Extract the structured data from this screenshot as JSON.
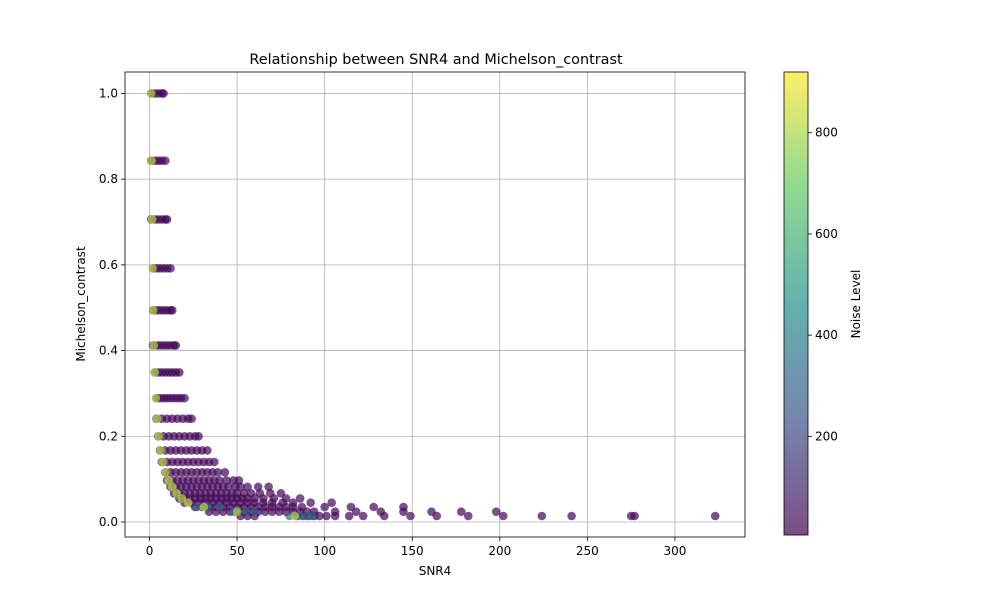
{
  "chart_data": {
    "type": "scatter",
    "title": "Relationship between SNR4 and Michelson_contrast",
    "xlabel": "SNR4",
    "ylabel": "Michelson_contrast",
    "xlim": [
      -14,
      340
    ],
    "ylim": [
      -0.035,
      1.05
    ],
    "xticks": [
      0,
      50,
      100,
      150,
      200,
      250,
      300
    ],
    "xtick_labels": [
      "0",
      "50",
      "100",
      "150",
      "200",
      "250",
      "300"
    ],
    "yticks": [
      0.0,
      0.2,
      0.4,
      0.6,
      0.8,
      1.0
    ],
    "ytick_labels": [
      "0.0",
      "0.2",
      "0.4",
      "0.6",
      "0.8",
      "1.0"
    ],
    "grid": true,
    "marker_alpha": 0.7,
    "colorbar": {
      "label": "Noise Level",
      "colormap": "viridis",
      "range": [
        5,
        920
      ],
      "ticks": [
        200,
        400,
        600,
        800
      ],
      "tick_labels": [
        "200",
        "400",
        "600",
        "800"
      ]
    },
    "contrast_levels": [
      1.0,
      0.843,
      0.706,
      0.592,
      0.494,
      0.412,
      0.349,
      0.289,
      0.241,
      0.2,
      0.167,
      0.14,
      0.116,
      0.097,
      0.082,
      0.067,
      0.055,
      0.045,
      0.035,
      0.024,
      0.014
    ],
    "points_low_noise_noise": 20,
    "low_noise_points": [
      [
        1,
        1.0
      ],
      [
        3,
        1.0
      ],
      [
        5,
        1.0
      ],
      [
        7,
        1.0
      ],
      [
        8,
        1.0
      ],
      [
        1,
        0.843
      ],
      [
        3,
        0.843
      ],
      [
        5,
        0.843
      ],
      [
        7,
        0.843
      ],
      [
        9,
        0.843
      ],
      [
        1,
        0.706
      ],
      [
        3,
        0.706
      ],
      [
        5,
        0.706
      ],
      [
        7,
        0.706
      ],
      [
        9,
        0.706
      ],
      [
        10,
        0.706
      ],
      [
        2,
        0.592
      ],
      [
        4,
        0.592
      ],
      [
        6,
        0.592
      ],
      [
        8,
        0.592
      ],
      [
        10,
        0.592
      ],
      [
        12,
        0.592
      ],
      [
        2,
        0.494
      ],
      [
        4,
        0.494
      ],
      [
        6,
        0.494
      ],
      [
        8,
        0.494
      ],
      [
        10,
        0.494
      ],
      [
        12,
        0.494
      ],
      [
        13,
        0.494
      ],
      [
        2,
        0.412
      ],
      [
        4,
        0.412
      ],
      [
        6,
        0.412
      ],
      [
        8,
        0.412
      ],
      [
        10,
        0.412
      ],
      [
        12,
        0.412
      ],
      [
        14,
        0.412
      ],
      [
        15,
        0.412
      ],
      [
        3,
        0.349
      ],
      [
        5,
        0.349
      ],
      [
        7,
        0.349
      ],
      [
        9,
        0.349
      ],
      [
        11,
        0.349
      ],
      [
        13,
        0.349
      ],
      [
        15,
        0.349
      ],
      [
        17,
        0.349
      ],
      [
        4,
        0.289
      ],
      [
        6,
        0.289
      ],
      [
        8,
        0.289
      ],
      [
        10,
        0.289
      ],
      [
        12,
        0.289
      ],
      [
        14,
        0.289
      ],
      [
        16,
        0.289
      ],
      [
        18,
        0.289
      ],
      [
        20,
        0.289
      ],
      [
        4,
        0.241
      ],
      [
        7,
        0.241
      ],
      [
        10,
        0.241
      ],
      [
        13,
        0.241
      ],
      [
        16,
        0.241
      ],
      [
        19,
        0.241
      ],
      [
        22,
        0.241
      ],
      [
        24,
        0.241
      ],
      [
        5,
        0.2
      ],
      [
        8,
        0.2
      ],
      [
        11,
        0.2
      ],
      [
        14,
        0.2
      ],
      [
        17,
        0.2
      ],
      [
        20,
        0.2
      ],
      [
        23,
        0.2
      ],
      [
        26,
        0.2
      ],
      [
        28,
        0.2
      ],
      [
        6,
        0.167
      ],
      [
        9,
        0.167
      ],
      [
        12,
        0.167
      ],
      [
        15,
        0.167
      ],
      [
        18,
        0.167
      ],
      [
        21,
        0.167
      ],
      [
        24,
        0.167
      ],
      [
        27,
        0.167
      ],
      [
        30,
        0.167
      ],
      [
        33,
        0.167
      ],
      [
        7,
        0.14
      ],
      [
        10,
        0.14
      ],
      [
        13,
        0.14
      ],
      [
        16,
        0.14
      ],
      [
        19,
        0.14
      ],
      [
        22,
        0.14
      ],
      [
        25,
        0.14
      ],
      [
        28,
        0.14
      ],
      [
        31,
        0.14
      ],
      [
        34,
        0.14
      ],
      [
        37,
        0.14
      ],
      [
        9,
        0.116
      ],
      [
        12,
        0.116
      ],
      [
        15,
        0.116
      ],
      [
        18,
        0.116
      ],
      [
        21,
        0.116
      ],
      [
        24,
        0.116
      ],
      [
        27,
        0.116
      ],
      [
        30,
        0.116
      ],
      [
        33,
        0.116
      ],
      [
        36,
        0.116
      ],
      [
        39,
        0.116
      ],
      [
        43,
        0.116
      ],
      [
        10,
        0.097
      ],
      [
        13,
        0.097
      ],
      [
        16,
        0.097
      ],
      [
        19,
        0.097
      ],
      [
        22,
        0.097
      ],
      [
        25,
        0.097
      ],
      [
        28,
        0.097
      ],
      [
        31,
        0.097
      ],
      [
        34,
        0.097
      ],
      [
        37,
        0.097
      ],
      [
        40,
        0.097
      ],
      [
        44,
        0.097
      ],
      [
        48,
        0.097
      ],
      [
        51,
        0.097
      ],
      [
        12,
        0.082
      ],
      [
        15,
        0.082
      ],
      [
        18,
        0.082
      ],
      [
        21,
        0.082
      ],
      [
        24,
        0.082
      ],
      [
        27,
        0.082
      ],
      [
        30,
        0.082
      ],
      [
        33,
        0.082
      ],
      [
        36,
        0.082
      ],
      [
        39,
        0.082
      ],
      [
        42,
        0.082
      ],
      [
        45,
        0.082
      ],
      [
        49,
        0.082
      ],
      [
        52,
        0.082
      ],
      [
        56,
        0.082
      ],
      [
        62,
        0.082
      ],
      [
        68,
        0.082
      ],
      [
        14,
        0.067
      ],
      [
        17,
        0.067
      ],
      [
        20,
        0.067
      ],
      [
        23,
        0.067
      ],
      [
        26,
        0.067
      ],
      [
        29,
        0.067
      ],
      [
        32,
        0.067
      ],
      [
        35,
        0.067
      ],
      [
        38,
        0.067
      ],
      [
        41,
        0.067
      ],
      [
        44,
        0.067
      ],
      [
        47,
        0.067
      ],
      [
        50,
        0.067
      ],
      [
        54,
        0.067
      ],
      [
        58,
        0.067
      ],
      [
        63,
        0.067
      ],
      [
        69,
        0.067
      ],
      [
        75,
        0.067
      ],
      [
        17,
        0.055
      ],
      [
        20,
        0.055
      ],
      [
        23,
        0.055
      ],
      [
        26,
        0.055
      ],
      [
        29,
        0.055
      ],
      [
        32,
        0.055
      ],
      [
        35,
        0.055
      ],
      [
        38,
        0.055
      ],
      [
        41,
        0.055
      ],
      [
        44,
        0.055
      ],
      [
        47,
        0.055
      ],
      [
        50,
        0.055
      ],
      [
        53,
        0.055
      ],
      [
        56,
        0.055
      ],
      [
        60,
        0.055
      ],
      [
        65,
        0.055
      ],
      [
        71,
        0.055
      ],
      [
        78,
        0.055
      ],
      [
        86,
        0.055
      ],
      [
        20,
        0.045
      ],
      [
        24,
        0.045
      ],
      [
        28,
        0.045
      ],
      [
        32,
        0.045
      ],
      [
        36,
        0.045
      ],
      [
        40,
        0.045
      ],
      [
        44,
        0.045
      ],
      [
        48,
        0.045
      ],
      [
        52,
        0.045
      ],
      [
        56,
        0.045
      ],
      [
        60,
        0.045
      ],
      [
        65,
        0.045
      ],
      [
        70,
        0.045
      ],
      [
        76,
        0.045
      ],
      [
        82,
        0.045
      ],
      [
        92,
        0.045
      ],
      [
        104,
        0.045
      ],
      [
        26,
        0.035
      ],
      [
        30,
        0.035
      ],
      [
        34,
        0.035
      ],
      [
        38,
        0.035
      ],
      [
        42,
        0.035
      ],
      [
        46,
        0.035
      ],
      [
        50,
        0.035
      ],
      [
        54,
        0.035
      ],
      [
        58,
        0.035
      ],
      [
        62,
        0.035
      ],
      [
        66,
        0.035
      ],
      [
        70,
        0.035
      ],
      [
        74,
        0.035
      ],
      [
        78,
        0.035
      ],
      [
        82,
        0.035
      ],
      [
        87,
        0.035
      ],
      [
        100,
        0.035
      ],
      [
        115,
        0.035
      ],
      [
        128,
        0.035
      ],
      [
        145,
        0.035
      ],
      [
        34,
        0.024
      ],
      [
        38,
        0.024
      ],
      [
        42,
        0.024
      ],
      [
        46,
        0.024
      ],
      [
        50,
        0.024
      ],
      [
        54,
        0.024
      ],
      [
        58,
        0.024
      ],
      [
        62,
        0.024
      ],
      [
        66,
        0.024
      ],
      [
        70,
        0.024
      ],
      [
        74,
        0.024
      ],
      [
        78,
        0.024
      ],
      [
        82,
        0.024
      ],
      [
        86,
        0.024
      ],
      [
        90,
        0.024
      ],
      [
        94,
        0.024
      ],
      [
        106,
        0.024
      ],
      [
        118,
        0.024
      ],
      [
        132,
        0.024
      ],
      [
        145,
        0.024
      ],
      [
        161,
        0.024
      ],
      [
        178,
        0.024
      ],
      [
        198,
        0.024
      ],
      [
        52,
        0.014
      ],
      [
        56,
        0.014
      ],
      [
        60,
        0.014
      ],
      [
        84,
        0.014
      ],
      [
        88,
        0.014
      ],
      [
        91,
        0.014
      ],
      [
        94,
        0.014
      ],
      [
        97,
        0.014
      ],
      [
        101,
        0.014
      ],
      [
        106,
        0.014
      ],
      [
        114,
        0.014
      ],
      [
        122,
        0.014
      ],
      [
        134,
        0.014
      ],
      [
        149,
        0.014
      ],
      [
        164,
        0.014
      ],
      [
        182,
        0.014
      ],
      [
        202,
        0.014
      ],
      [
        224,
        0.014
      ],
      [
        241,
        0.014
      ],
      [
        275,
        0.014
      ],
      [
        277,
        0.014
      ],
      [
        323,
        0.014
      ]
    ],
    "high_noise_noise": 820,
    "high_noise_points": [
      [
        1,
        1.0
      ],
      [
        1.2,
        0.843
      ],
      [
        1.5,
        0.706
      ],
      [
        1.8,
        0.592
      ],
      [
        2.1,
        0.494
      ],
      [
        2.5,
        0.412
      ],
      [
        3,
        0.349
      ],
      [
        3.6,
        0.289
      ],
      [
        4.3,
        0.241
      ],
      [
        5.2,
        0.2
      ],
      [
        6.3,
        0.167
      ],
      [
        7.5,
        0.14
      ],
      [
        9,
        0.116
      ],
      [
        10.8,
        0.097
      ],
      [
        12.9,
        0.082
      ],
      [
        15.5,
        0.067
      ],
      [
        18.5,
        0.055
      ],
      [
        22,
        0.045
      ],
      [
        31,
        0.035
      ],
      [
        50,
        0.024
      ],
      [
        83,
        0.014
      ]
    ],
    "mid_noise_noise": 300,
    "mid_noise_points": [
      [
        27,
        0.035
      ],
      [
        33,
        0.035
      ],
      [
        40,
        0.035
      ],
      [
        48,
        0.024
      ],
      [
        55,
        0.024
      ],
      [
        60,
        0.024
      ],
      [
        80,
        0.014
      ],
      [
        86,
        0.014
      ],
      [
        90,
        0.014
      ],
      [
        93,
        0.014
      ]
    ]
  }
}
